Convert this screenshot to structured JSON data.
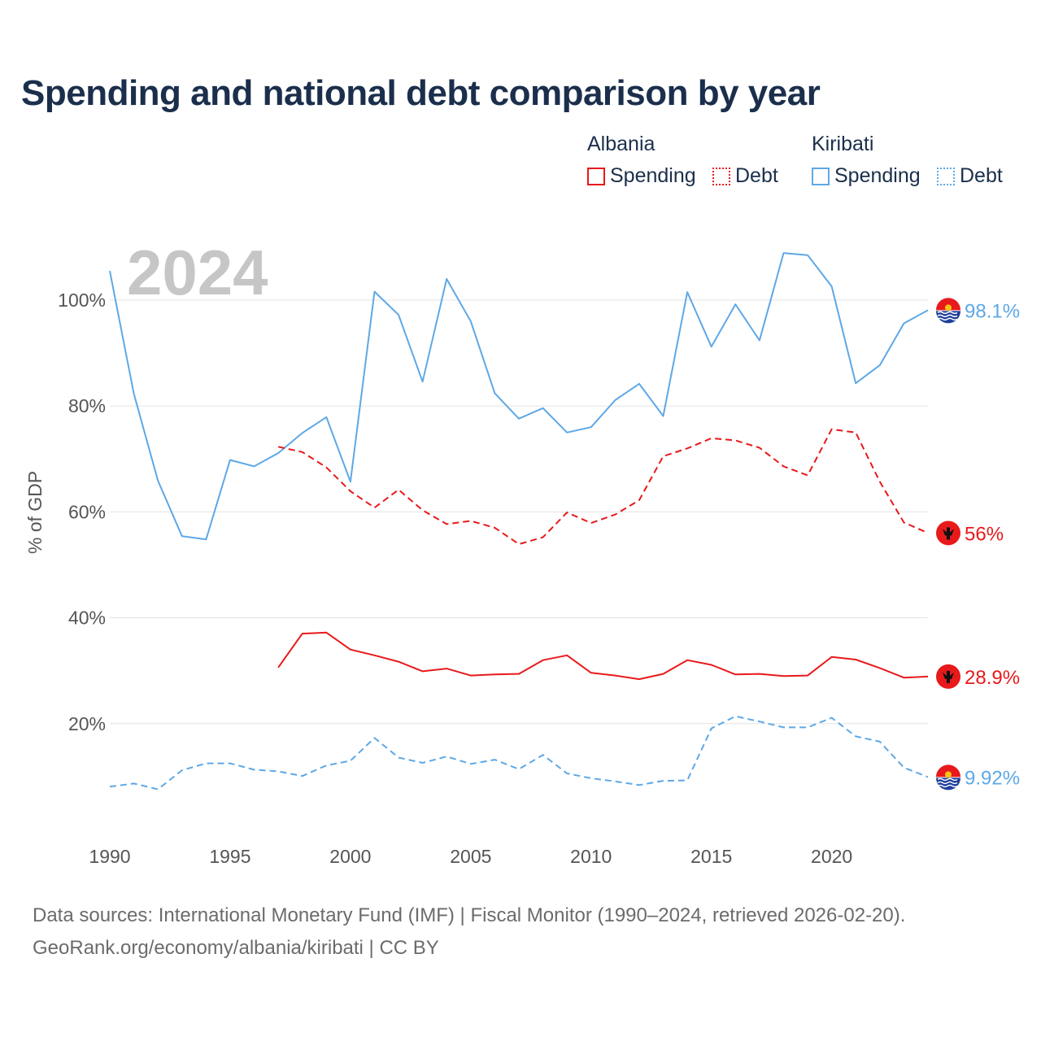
{
  "title": "Spending and national debt comparison by year",
  "legend": {
    "countries": [
      {
        "name": "Albania",
        "color": "#e8191b",
        "spending_label": "Spending",
        "debt_label": "Debt"
      },
      {
        "name": "Kiribati",
        "color": "#5ea8e6",
        "spending_label": "Spending",
        "debt_label": "Debt"
      }
    ]
  },
  "year_watermark": "2024",
  "footer": {
    "source_line": "Data sources: International Monetary Fund (IMF) | Fiscal Monitor (1990–2024, retrieved 2026-02-20).",
    "link_line": "GeoRank.org/economy/albania/kiribati | CC BY"
  },
  "chart_data": {
    "type": "line",
    "title": "Spending and national debt comparison by year",
    "xlabel": "",
    "ylabel": "% of GDP",
    "xlim": [
      1990,
      2024
    ],
    "ylim": [
      0,
      110
    ],
    "x_ticks": [
      1990,
      1995,
      2000,
      2005,
      2010,
      2015,
      2020
    ],
    "x_tick_labels": [
      "1990",
      "1995",
      "2000",
      "2005",
      "2010",
      "2015",
      "2020"
    ],
    "y_ticks": [
      20,
      40,
      60,
      80,
      100
    ],
    "y_tick_labels": [
      "20%",
      "40%",
      "60%",
      "80%",
      "100%"
    ],
    "grid": true,
    "series": [
      {
        "name": "Kiribati Spending",
        "country": "Kiribati",
        "metric": "Spending",
        "color": "#5ea8e6",
        "dash": "solid",
        "x": [
          1990,
          1991,
          1992,
          1993,
          1994,
          1995,
          1996,
          1997,
          1998,
          1999,
          2000,
          2001,
          2002,
          2003,
          2004,
          2005,
          2006,
          2007,
          2008,
          2009,
          2010,
          2011,
          2012,
          2013,
          2014,
          2015,
          2016,
          2017,
          2018,
          2019,
          2020,
          2021,
          2022,
          2023,
          2024
        ],
        "values": [
          105.5,
          82.3,
          65.9,
          55.4,
          54.8,
          69.8,
          68.6,
          71.1,
          74.9,
          77.9,
          65.7,
          101.6,
          97.2,
          84.6,
          104.0,
          96.0,
          82.4,
          77.6,
          79.6,
          75.0,
          76.0,
          81.1,
          84.2,
          78.1,
          101.5,
          91.2,
          99.2,
          92.4,
          108.9,
          108.5,
          102.6,
          84.3,
          87.7,
          95.6,
          98.1
        ],
        "end_label": "98.1%"
      },
      {
        "name": "Albania Debt",
        "country": "Albania",
        "metric": "Debt",
        "color": "#e8191b",
        "dash": "dashed",
        "x": [
          1997,
          1998,
          1999,
          2000,
          2001,
          2002,
          2003,
          2004,
          2005,
          2006,
          2007,
          2008,
          2009,
          2010,
          2011,
          2012,
          2013,
          2014,
          2015,
          2016,
          2017,
          2018,
          2019,
          2020,
          2021,
          2022,
          2023,
          2024
        ],
        "values": [
          72.3,
          71.3,
          68.4,
          63.9,
          60.8,
          64.2,
          60.3,
          57.7,
          58.3,
          57.0,
          53.9,
          55.2,
          59.9,
          57.9,
          59.5,
          62.2,
          70.5,
          72.0,
          73.9,
          73.5,
          72.1,
          68.6,
          66.9,
          75.6,
          75.0,
          65.7,
          58.0,
          56.0
        ],
        "end_label": "56%"
      },
      {
        "name": "Albania Spending",
        "country": "Albania",
        "metric": "Spending",
        "color": "#e8191b",
        "dash": "solid",
        "x": [
          1997,
          1998,
          1999,
          2000,
          2001,
          2002,
          2003,
          2004,
          2005,
          2006,
          2007,
          2008,
          2009,
          2010,
          2011,
          2012,
          2013,
          2014,
          2015,
          2016,
          2017,
          2018,
          2019,
          2020,
          2021,
          2022,
          2023,
          2024
        ],
        "values": [
          30.6,
          37.0,
          37.2,
          34.0,
          32.9,
          31.7,
          29.9,
          30.4,
          29.1,
          29.3,
          29.4,
          32.0,
          32.9,
          29.6,
          29.1,
          28.4,
          29.4,
          32.0,
          31.1,
          29.3,
          29.4,
          29.0,
          29.1,
          32.6,
          32.1,
          30.5,
          28.7,
          28.9
        ],
        "end_label": "28.9%"
      },
      {
        "name": "Kiribati Debt",
        "country": "Kiribati",
        "metric": "Debt",
        "color": "#5ea8e6",
        "dash": "dashed",
        "x": [
          1990,
          1991,
          1992,
          1993,
          1994,
          1995,
          1996,
          1997,
          1998,
          1999,
          2000,
          2001,
          2002,
          2003,
          2004,
          2005,
          2006,
          2007,
          2008,
          2009,
          2010,
          2011,
          2012,
          2013,
          2014,
          2015,
          2016,
          2017,
          2018,
          2019,
          2020,
          2021,
          2022,
          2023,
          2024
        ],
        "values": [
          8.1,
          8.7,
          7.6,
          11.2,
          12.5,
          12.5,
          11.3,
          11.0,
          10.1,
          12.1,
          13.0,
          17.3,
          13.6,
          12.6,
          13.8,
          12.4,
          13.2,
          11.4,
          14.1,
          10.6,
          9.7,
          9.1,
          8.4,
          9.2,
          9.3,
          19.1,
          21.4,
          20.4,
          19.3,
          19.3,
          21.1,
          17.6,
          16.6,
          11.7,
          9.92
        ],
        "end_label": "9.92%"
      }
    ]
  }
}
